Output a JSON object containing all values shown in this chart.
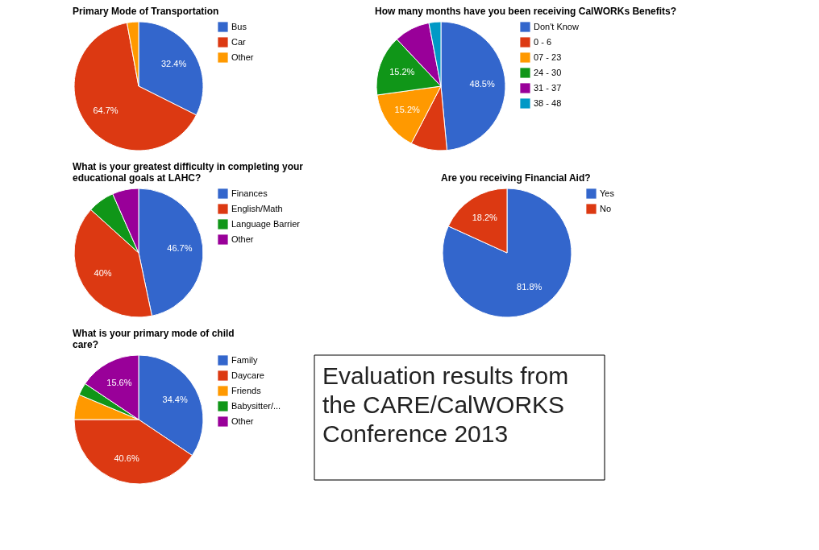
{
  "chart_data": [
    {
      "type": "pie",
      "title": "Primary Mode of Transportation",
      "categories": [
        "Bus",
        "Car",
        "Other"
      ],
      "values": [
        32.4,
        64.7,
        2.9
      ],
      "value_labels": [
        "32.4%",
        "64.7%",
        null
      ],
      "colors": [
        "#3366cc",
        "#dc3912",
        "#ff9900"
      ],
      "legend": "right"
    },
    {
      "type": "pie",
      "title": "How many months have you been receiving CalWORKs Benefits?",
      "categories": [
        "Don't Know",
        "0 - 6",
        "07 - 23",
        "24 - 30",
        "31 - 37",
        "38 - 48"
      ],
      "values": [
        48.5,
        9.1,
        15.2,
        15.2,
        9.0,
        3.0
      ],
      "value_labels": [
        "48.5%",
        null,
        "15.2%",
        "15.2%",
        null,
        null
      ],
      "colors": [
        "#3366cc",
        "#dc3912",
        "#ff9900",
        "#109618",
        "#990099",
        "#0099c6"
      ],
      "legend": "right"
    },
    {
      "type": "pie",
      "title": "What is your greatest difficulty in completing your educational goals at LAHC?",
      "categories": [
        "Finances",
        "English/Math",
        "Language Barrier",
        "Other"
      ],
      "values": [
        46.7,
        40,
        6.7,
        6.6
      ],
      "value_labels": [
        "46.7%",
        "40%",
        null,
        null
      ],
      "colors": [
        "#3366cc",
        "#dc3912",
        "#109618",
        "#990099"
      ],
      "legend": "right"
    },
    {
      "type": "pie",
      "title": "Are you receiving Financial Aid?",
      "categories": [
        "Yes",
        "No"
      ],
      "values": [
        81.8,
        18.2
      ],
      "value_labels": [
        "81.8%",
        "18.2%"
      ],
      "colors": [
        "#3366cc",
        "#dc3912"
      ],
      "legend": "top right"
    },
    {
      "type": "pie",
      "title": "What is your primary mode of child care?",
      "categories": [
        "Family",
        "Daycare",
        "Friends",
        "Babysitter/...",
        "Other"
      ],
      "values": [
        34.4,
        40.6,
        6.3,
        3.1,
        15.6
      ],
      "value_labels": [
        "34.4%",
        "40.6%",
        null,
        null,
        "15.6%"
      ],
      "colors": [
        "#3366cc",
        "#dc3912",
        "#ff9900",
        "#109618",
        "#990099"
      ],
      "legend": "right"
    },
    {
      "type": "other",
      "annotations": [
        "Evaluation results from the CARE/CalWORKS Conference 2013"
      ]
    }
  ]
}
